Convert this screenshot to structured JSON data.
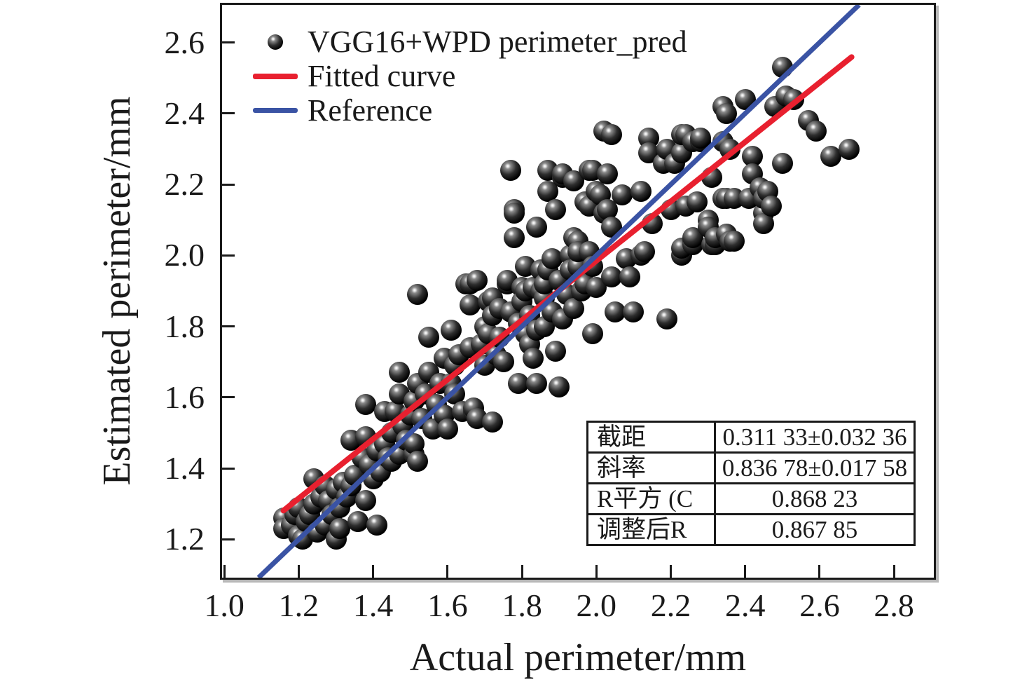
{
  "chart_data": {
    "type": "scatter",
    "title": "",
    "xlabel": "Actual perimeter/mm",
    "ylabel": "Estimated perimeter/mm",
    "xlim": [
      0.994,
      2.907
    ],
    "ylim": [
      1.092,
      2.706
    ],
    "grid": false,
    "x_ticks": [
      {
        "v": 1.0,
        "label": "1.0"
      },
      {
        "v": 1.2,
        "label": "1.2"
      },
      {
        "v": 1.4,
        "label": "1.4"
      },
      {
        "v": 1.6,
        "label": "1.6"
      },
      {
        "v": 1.8,
        "label": "1.8"
      },
      {
        "v": 2.0,
        "label": "2.0"
      },
      {
        "v": 2.2,
        "label": "2.2"
      },
      {
        "v": 2.4,
        "label": "2.4"
      },
      {
        "v": 2.6,
        "label": "2.6"
      },
      {
        "v": 2.8,
        "label": "2.8"
      }
    ],
    "y_ticks": [
      {
        "v": 1.2,
        "label": "1.2"
      },
      {
        "v": 1.4,
        "label": "1.4"
      },
      {
        "v": 1.6,
        "label": "1.6"
      },
      {
        "v": 1.8,
        "label": "1.8"
      },
      {
        "v": 2.0,
        "label": "2.0"
      },
      {
        "v": 2.2,
        "label": "2.2"
      },
      {
        "v": 2.4,
        "label": "2.4"
      },
      {
        "v": 2.6,
        "label": "2.6"
      }
    ],
    "legend": {
      "position": "upper-left",
      "items": [
        {
          "label": "VGG16+WPD perimeter_pred",
          "marker": "sphere",
          "color": "#0a0a0a"
        },
        {
          "label": "Fitted curve",
          "marker": "line",
          "color": "#e8202f"
        },
        {
          "label": "Reference",
          "marker": "line",
          "color": "#3a53a4"
        }
      ]
    },
    "series": [
      {
        "name": "VGG16+WPD perimeter_pred",
        "type": "scatter",
        "marker": "sphere",
        "color": "#0a0a0a",
        "points": [
          [
            1.16,
            1.26
          ],
          [
            1.16,
            1.23
          ],
          [
            1.18,
            1.24
          ],
          [
            1.19,
            1.27
          ],
          [
            1.2,
            1.29
          ],
          [
            1.2,
            1.21
          ],
          [
            1.21,
            1.2
          ],
          [
            1.22,
            1.25
          ],
          [
            1.23,
            1.27
          ],
          [
            1.24,
            1.37
          ],
          [
            1.24,
            1.3
          ],
          [
            1.25,
            1.22
          ],
          [
            1.26,
            1.32
          ],
          [
            1.27,
            1.35
          ],
          [
            1.27,
            1.24
          ],
          [
            1.28,
            1.31
          ],
          [
            1.29,
            1.27
          ],
          [
            1.3,
            1.2
          ],
          [
            1.3,
            1.34
          ],
          [
            1.31,
            1.29
          ],
          [
            1.31,
            1.23
          ],
          [
            1.32,
            1.36
          ],
          [
            1.33,
            1.32
          ],
          [
            1.34,
            1.48
          ],
          [
            1.34,
            1.35
          ],
          [
            1.35,
            1.38
          ],
          [
            1.36,
            1.25
          ],
          [
            1.37,
            1.43
          ],
          [
            1.38,
            1.49
          ],
          [
            1.38,
            1.58
          ],
          [
            1.38,
            1.31
          ],
          [
            1.39,
            1.41
          ],
          [
            1.4,
            1.37
          ],
          [
            1.41,
            1.24
          ],
          [
            1.41,
            1.45
          ],
          [
            1.42,
            1.39
          ],
          [
            1.43,
            1.47
          ],
          [
            1.43,
            1.56
          ],
          [
            1.44,
            1.43
          ],
          [
            1.45,
            1.5
          ],
          [
            1.45,
            1.42
          ],
          [
            1.46,
            1.56
          ],
          [
            1.47,
            1.44
          ],
          [
            1.47,
            1.61
          ],
          [
            1.47,
            1.67
          ],
          [
            1.48,
            1.52
          ],
          [
            1.49,
            1.48
          ],
          [
            1.5,
            1.55
          ],
          [
            1.51,
            1.44
          ],
          [
            1.51,
            1.47
          ],
          [
            1.51,
            1.59
          ],
          [
            1.52,
            1.64
          ],
          [
            1.52,
            1.89
          ],
          [
            1.52,
            1.42
          ],
          [
            1.53,
            1.54
          ],
          [
            1.54,
            1.61
          ],
          [
            1.55,
            1.67
          ],
          [
            1.55,
            1.77
          ],
          [
            1.56,
            1.51
          ],
          [
            1.57,
            1.58
          ],
          [
            1.58,
            1.64
          ],
          [
            1.59,
            1.71
          ],
          [
            1.59,
            1.55
          ],
          [
            1.6,
            1.51
          ],
          [
            1.61,
            1.64
          ],
          [
            1.61,
            1.79
          ],
          [
            1.62,
            1.69
          ],
          [
            1.62,
            1.61
          ],
          [
            1.63,
            1.72
          ],
          [
            1.64,
            1.56
          ],
          [
            1.65,
            1.92
          ],
          [
            1.66,
            1.74
          ],
          [
            1.66,
            1.86
          ],
          [
            1.66,
            1.92
          ],
          [
            1.67,
            1.56
          ],
          [
            1.67,
            1.57
          ],
          [
            1.68,
            1.54
          ],
          [
            1.68,
            1.93
          ],
          [
            1.69,
            1.75
          ],
          [
            1.7,
            1.8
          ],
          [
            1.7,
            1.69
          ],
          [
            1.71,
            1.87
          ],
          [
            1.71,
            1.78
          ],
          [
            1.72,
            1.53
          ],
          [
            1.72,
            1.88
          ],
          [
            1.72,
            1.83
          ],
          [
            1.73,
            1.72
          ],
          [
            1.74,
            1.77
          ],
          [
            1.74,
            1.85
          ],
          [
            1.75,
            1.7
          ],
          [
            1.76,
            1.92
          ],
          [
            1.76,
            1.93
          ],
          [
            1.77,
            1.84
          ],
          [
            1.77,
            2.24
          ],
          [
            1.78,
            2.13
          ],
          [
            1.78,
            2.05
          ],
          [
            1.78,
            2.12
          ],
          [
            1.79,
            1.81
          ],
          [
            1.79,
            1.64
          ],
          [
            1.8,
            1.91
          ],
          [
            1.8,
            1.87
          ],
          [
            1.81,
            1.9
          ],
          [
            1.81,
            1.78
          ],
          [
            1.81,
            1.97
          ],
          [
            1.82,
            1.75
          ],
          [
            1.82,
            1.83
          ],
          [
            1.83,
            1.91
          ],
          [
            1.83,
            1.71
          ],
          [
            1.84,
            2.08
          ],
          [
            1.84,
            1.79
          ],
          [
            1.84,
            1.64
          ],
          [
            1.85,
            1.9
          ],
          [
            1.85,
            1.96
          ],
          [
            1.86,
            1.88
          ],
          [
            1.86,
            1.8
          ],
          [
            1.86,
            1.92
          ],
          [
            1.87,
            1.96
          ],
          [
            1.87,
            2.18
          ],
          [
            1.87,
            2.24
          ],
          [
            1.88,
            1.99
          ],
          [
            1.88,
            1.84
          ],
          [
            1.89,
            1.73
          ],
          [
            1.89,
            2.13
          ],
          [
            1.9,
            1.93
          ],
          [
            1.9,
            1.63
          ],
          [
            1.91,
            1.82
          ],
          [
            1.91,
            2.22
          ],
          [
            1.91,
            2.23
          ],
          [
            1.92,
            1.89
          ],
          [
            1.93,
            2.0
          ],
          [
            1.93,
            1.96
          ],
          [
            1.94,
            2.05
          ],
          [
            1.94,
            2.21
          ],
          [
            1.94,
            1.85
          ],
          [
            1.95,
            1.97
          ],
          [
            1.95,
            2.04
          ],
          [
            1.95,
            2.01
          ],
          [
            1.96,
            1.9
          ],
          [
            1.97,
            1.92
          ],
          [
            1.97,
            2.15
          ],
          [
            1.98,
            2.14
          ],
          [
            1.98,
            2.01
          ],
          [
            1.98,
            2.24
          ],
          [
            1.99,
            1.78
          ],
          [
            1.99,
            2.24
          ],
          [
            1.99,
            1.97
          ],
          [
            2.0,
            2.18
          ],
          [
            2.0,
            1.91
          ],
          [
            2.01,
            2.17
          ],
          [
            2.02,
            2.12
          ],
          [
            2.02,
            2.35
          ],
          [
            2.03,
            2.13
          ],
          [
            2.03,
            2.23
          ],
          [
            2.04,
            1.94
          ],
          [
            2.04,
            2.08
          ],
          [
            2.04,
            2.34
          ],
          [
            2.05,
            1.84
          ],
          [
            2.07,
            2.17
          ],
          [
            2.08,
            1.99
          ],
          [
            2.09,
            1.94
          ],
          [
            2.1,
            1.84
          ],
          [
            2.12,
            2.0
          ],
          [
            2.13,
            2.01
          ],
          [
            2.12,
            2.18
          ],
          [
            2.14,
            2.33
          ],
          [
            2.14,
            2.29
          ],
          [
            2.15,
            2.09
          ],
          [
            2.18,
            2.26
          ],
          [
            2.19,
            1.82
          ],
          [
            2.19,
            2.3
          ],
          [
            2.2,
            2.13
          ],
          [
            2.21,
            2.26
          ],
          [
            2.23,
            2.0
          ],
          [
            2.23,
            2.02
          ],
          [
            2.23,
            2.29
          ],
          [
            2.23,
            2.34
          ],
          [
            2.24,
            2.14
          ],
          [
            2.24,
            2.34
          ],
          [
            2.26,
            2.04
          ],
          [
            2.26,
            2.03
          ],
          [
            2.26,
            2.05
          ],
          [
            2.26,
            2.32
          ],
          [
            2.27,
            2.15
          ],
          [
            2.28,
            2.32
          ],
          [
            2.28,
            2.33
          ],
          [
            2.3,
            2.1
          ],
          [
            2.3,
            2.08
          ],
          [
            2.31,
            2.22
          ],
          [
            2.31,
            2.03
          ],
          [
            2.32,
            2.03
          ],
          [
            2.32,
            2.05
          ],
          [
            2.34,
            2.32
          ],
          [
            2.34,
            2.16
          ],
          [
            2.35,
            2.16
          ],
          [
            2.34,
            2.42
          ],
          [
            2.35,
            2.06
          ],
          [
            2.35,
            2.4
          ],
          [
            2.36,
            2.3
          ],
          [
            2.36,
            2.04
          ],
          [
            2.37,
            2.04
          ],
          [
            2.37,
            2.16
          ],
          [
            2.4,
            2.44
          ],
          [
            2.41,
            2.16
          ],
          [
            2.42,
            2.28
          ],
          [
            2.42,
            2.23
          ],
          [
            2.44,
            2.19
          ],
          [
            2.45,
            2.12
          ],
          [
            2.45,
            2.16
          ],
          [
            2.45,
            2.09
          ],
          [
            2.46,
            2.18
          ],
          [
            2.47,
            2.14
          ],
          [
            2.48,
            2.42
          ],
          [
            2.5,
            2.53
          ],
          [
            2.5,
            2.26
          ],
          [
            2.51,
            2.45
          ],
          [
            2.53,
            2.44
          ],
          [
            2.57,
            2.38
          ],
          [
            2.59,
            2.35
          ],
          [
            2.63,
            2.28
          ],
          [
            2.68,
            2.3
          ]
        ]
      },
      {
        "name": "Fitted curve",
        "type": "line",
        "color": "#e8202f",
        "x": [
          1.159,
          2.686
        ],
        "y": [
          1.281,
          2.559
        ],
        "equation": "y = 0.83678x + 0.31133"
      },
      {
        "name": "Reference",
        "type": "line",
        "color": "#3a53a4",
        "x": [
          1.092,
          2.706
        ],
        "y": [
          1.092,
          2.706
        ],
        "equation": "y = x"
      }
    ],
    "stats_table": {
      "rows": [
        {
          "label": "截距",
          "value": "0.311 33±0.032 36"
        },
        {
          "label": "斜率",
          "value": "0.836 78±0.017 58"
        },
        {
          "label": "R平方 (C",
          "value": "0.868 23"
        },
        {
          "label": "调整后R",
          "value": "0.867 85"
        }
      ]
    }
  },
  "colors": {
    "scatter": "#0a0a0a",
    "fitted": "#e8202f",
    "reference": "#3a53a4",
    "text": "#1a1a1a",
    "frame": "#1a1a1a"
  }
}
